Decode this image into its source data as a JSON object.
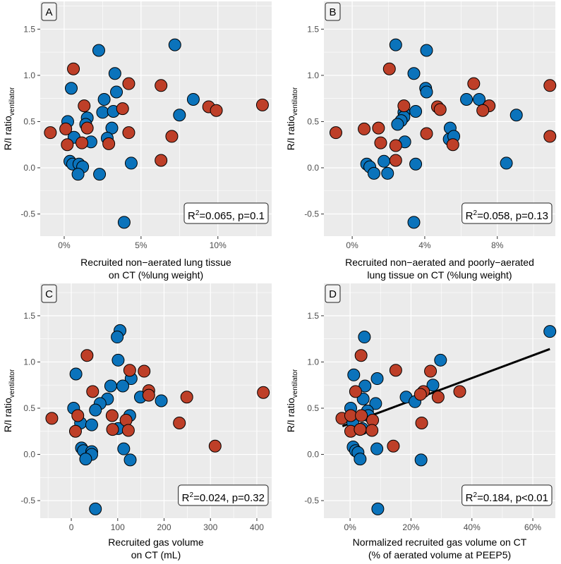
{
  "chart_data": [
    {
      "type": "scatter",
      "panel_label": "A",
      "ylabel": "R/I ratio",
      "ylabel_sub": "ventilator",
      "xlabel_lines": [
        "Recruited non−aerated lung tissue",
        "on CT (%lung weight)"
      ],
      "xlim": [
        -1.56,
        13.5
      ],
      "ylim": [
        -0.74,
        1.8
      ],
      "xticks": [
        {
          "v": 0,
          "label": "0%"
        },
        {
          "v": 5,
          "label": "5%"
        },
        {
          "v": 10,
          "label": "10%"
        }
      ],
      "yticks": [
        {
          "v": -0.5,
          "label": "-0.5"
        },
        {
          "v": 0,
          "label": "0.0"
        },
        {
          "v": 0.5,
          "label": "0.5"
        },
        {
          "v": 1,
          "label": "1.0"
        },
        {
          "v": 1.5,
          "label": "1.5"
        }
      ],
      "stat": {
        "r": "R",
        "sup": "2",
        "rest": "=0.065, p=0.1"
      },
      "series": [
        {
          "color": "#0b73bb",
          "points": [
            [
              7.2,
              1.33
            ],
            [
              2.25,
              1.27
            ],
            [
              3.3,
              1.02
            ],
            [
              0.46,
              0.86
            ],
            [
              3.4,
              0.82
            ],
            [
              2.6,
              0.74
            ],
            [
              8.4,
              0.74
            ],
            [
              7.5,
              0.57
            ],
            [
              2.5,
              0.6
            ],
            [
              3.2,
              0.61
            ],
            [
              1.5,
              0.54
            ],
            [
              0.23,
              0.5
            ],
            [
              1.4,
              0.47
            ],
            [
              3.1,
              0.43
            ],
            [
              0.64,
              0.33
            ],
            [
              1.74,
              0.28
            ],
            [
              2.8,
              0.32
            ],
            [
              0.37,
              0.07
            ],
            [
              0.55,
              0.04
            ],
            [
              0.96,
              0.04
            ],
            [
              1.2,
              0.01
            ],
            [
              0.9,
              -0.07
            ],
            [
              2.3,
              -0.07
            ],
            [
              4.36,
              0.05
            ],
            [
              3.9,
              -0.59
            ]
          ]
        },
        {
          "color": "#be3f28",
          "points": [
            [
              0.6,
              1.07
            ],
            [
              4.2,
              0.91
            ],
            [
              6.3,
              0.89
            ],
            [
              1.3,
              0.67
            ],
            [
              3.8,
              0.64
            ],
            [
              9.4,
              0.66
            ],
            [
              9.9,
              0.62
            ],
            [
              12.9,
              0.68
            ],
            [
              1.5,
              0.43
            ],
            [
              0.1,
              0.42
            ],
            [
              -0.9,
              0.38
            ],
            [
              4.2,
              0.38
            ],
            [
              7.0,
              0.34
            ],
            [
              1.15,
              0.27
            ],
            [
              0.2,
              0.25
            ],
            [
              2.9,
              0.26
            ],
            [
              6.3,
              0.08
            ]
          ]
        }
      ]
    },
    {
      "type": "scatter",
      "panel_label": "B",
      "ylabel": "R/I ratio",
      "ylabel_sub": "ventilator",
      "xlabel_lines": [
        "Recruited non−aerated and poorly−aerated",
        "lung tissue on CT (%lung weight)"
      ],
      "xlim": [
        -1.56,
        11.2
      ],
      "ylim": [
        -0.74,
        1.8
      ],
      "xticks": [
        {
          "v": 0,
          "label": "0%"
        },
        {
          "v": 4,
          "label": "4%"
        },
        {
          "v": 8,
          "label": "8%"
        }
      ],
      "yticks": [
        {
          "v": -0.5,
          "label": "-0.5"
        },
        {
          "v": 0,
          "label": "0.0"
        },
        {
          "v": 0.5,
          "label": "0.5"
        },
        {
          "v": 1,
          "label": "1.0"
        },
        {
          "v": 1.5,
          "label": "1.5"
        }
      ],
      "stat": {
        "r": "R",
        "sup": "2",
        "rest": "=0.058, p=0.13"
      },
      "series": [
        {
          "color": "#0b73bb",
          "points": [
            [
              2.4,
              1.33
            ],
            [
              4.1,
              1.27
            ],
            [
              3.4,
              1.02
            ],
            [
              4.05,
              0.86
            ],
            [
              4.1,
              0.82
            ],
            [
              6.3,
              0.74
            ],
            [
              7.0,
              0.74
            ],
            [
              9.05,
              0.57
            ],
            [
              3.5,
              0.61
            ],
            [
              2.85,
              0.6
            ],
            [
              2.85,
              0.55
            ],
            [
              2.7,
              0.51
            ],
            [
              2.5,
              0.47
            ],
            [
              5.4,
              0.43
            ],
            [
              5.35,
              0.31
            ],
            [
              5.6,
              0.34
            ],
            [
              2.9,
              0.28
            ],
            [
              0.8,
              0.04
            ],
            [
              0.97,
              0.01
            ],
            [
              1.75,
              0.07
            ],
            [
              1.2,
              -0.06
            ],
            [
              1.95,
              -0.06
            ],
            [
              3.5,
              0.04
            ],
            [
              8.5,
              0.05
            ],
            [
              3.4,
              -0.59
            ]
          ]
        },
        {
          "color": "#be3f28",
          "points": [
            [
              2.05,
              1.07
            ],
            [
              6.7,
              0.91
            ],
            [
              10.9,
              0.89
            ],
            [
              2.85,
              0.67
            ],
            [
              4.7,
              0.66
            ],
            [
              4.85,
              0.63
            ],
            [
              7.55,
              0.67
            ],
            [
              7.2,
              0.62
            ],
            [
              -0.9,
              0.38
            ],
            [
              0.66,
              0.42
            ],
            [
              1.45,
              0.43
            ],
            [
              4.1,
              0.37
            ],
            [
              1.57,
              0.27
            ],
            [
              2.4,
              0.24
            ],
            [
              5.55,
              0.25
            ],
            [
              2.4,
              0.08
            ],
            [
              10.9,
              0.34
            ]
          ]
        }
      ]
    },
    {
      "type": "scatter",
      "panel_label": "C",
      "ylabel": "R/I ratio",
      "ylabel_sub": "ventilator",
      "xlabel_lines": [
        "Recruited gas volume",
        "on CT (mL)"
      ],
      "xlim": [
        -67,
        432
      ],
      "ylim": [
        -0.69,
        1.85
      ],
      "xticks": [
        {
          "v": 0,
          "label": "0"
        },
        {
          "v": 100,
          "label": "100"
        },
        {
          "v": 200,
          "label": "200"
        },
        {
          "v": 300,
          "label": "300"
        },
        {
          "v": 400,
          "label": "400"
        }
      ],
      "yticks": [
        {
          "v": -0.5,
          "label": "-0.5"
        },
        {
          "v": 0,
          "label": "0.0"
        },
        {
          "v": 0.5,
          "label": "0.5"
        },
        {
          "v": 1,
          "label": "1.0"
        },
        {
          "v": 1.5,
          "label": "1.5"
        }
      ],
      "stat": {
        "r": "R",
        "sup": "2",
        "rest": "=0.024, p=0.32"
      },
      "series": [
        {
          "color": "#0b73bb",
          "points": [
            [
              105,
              1.34
            ],
            [
              99,
              1.27
            ],
            [
              101,
              1.02
            ],
            [
              10,
              0.87
            ],
            [
              129,
              0.82
            ],
            [
              85,
              0.74
            ],
            [
              111,
              0.74
            ],
            [
              78,
              0.6
            ],
            [
              149,
              0.62
            ],
            [
              194,
              0.58
            ],
            [
              62,
              0.55
            ],
            [
              52,
              0.48
            ],
            [
              5,
              0.5
            ],
            [
              126,
              0.42
            ],
            [
              20,
              0.34
            ],
            [
              44,
              0.32
            ],
            [
              101,
              0.28
            ],
            [
              22,
              0.07
            ],
            [
              26,
              0.04
            ],
            [
              44,
              0.03
            ],
            [
              44,
              0.0
            ],
            [
              31,
              -0.05
            ],
            [
              113,
              0.06
            ],
            [
              127,
              -0.06
            ],
            [
              52,
              -0.59
            ]
          ]
        },
        {
          "color": "#be3f28",
          "points": [
            [
              34,
              1.07
            ],
            [
              126,
              0.91
            ],
            [
              157,
              0.9
            ],
            [
              167,
              0.69
            ],
            [
              167,
              0.64
            ],
            [
              46,
              0.68
            ],
            [
              249,
              0.62
            ],
            [
              414,
              0.67
            ],
            [
              14,
              0.42
            ],
            [
              -42,
              0.39
            ],
            [
              88,
              0.42
            ],
            [
              118,
              0.37
            ],
            [
              233,
              0.34
            ],
            [
              9,
              0.25
            ],
            [
              89,
              0.27
            ],
            [
              123,
              0.26
            ],
            [
              310,
              0.09
            ]
          ]
        }
      ]
    },
    {
      "type": "scatter",
      "panel_label": "D",
      "ylabel": "R/I ratio",
      "ylabel_sub": "ventilator",
      "xlabel_lines": [
        "Normalized recruited gas volume on CT",
        "(% of aerated volume at PEEP5)"
      ],
      "xlim": [
        -8.6,
        67.4
      ],
      "ylim": [
        -0.69,
        1.85
      ],
      "xticks": [
        {
          "v": 0,
          "label": "0%"
        },
        {
          "v": 20,
          "label": "20%"
        },
        {
          "v": 40,
          "label": "40%"
        },
        {
          "v": 60,
          "label": "60%"
        }
      ],
      "yticks": [
        {
          "v": -0.5,
          "label": "-0.5"
        },
        {
          "v": 0,
          "label": "0.0"
        },
        {
          "v": 0.5,
          "label": "0.5"
        },
        {
          "v": 1,
          "label": "1.0"
        },
        {
          "v": 1.5,
          "label": "1.5"
        }
      ],
      "stat": {
        "r": "R",
        "sup": "2",
        "rest": "=0.184, p<0.01"
      },
      "regression_line": [
        [
          -2.5,
          0.305
        ],
        [
          65.6,
          1.14
        ]
      ],
      "series": [
        {
          "color": "#0b73bb",
          "points": [
            [
              65.6,
              1.33
            ],
            [
              4.7,
              1.27
            ],
            [
              29.7,
              1.02
            ],
            [
              1.2,
              0.86
            ],
            [
              8.9,
              0.82
            ],
            [
              4.9,
              0.74
            ],
            [
              27.2,
              0.75
            ],
            [
              4.3,
              0.6
            ],
            [
              18.4,
              0.62
            ],
            [
              21.3,
              0.57
            ],
            [
              8.4,
              0.55
            ],
            [
              0.2,
              0.5
            ],
            [
              5.7,
              0.47
            ],
            [
              6.0,
              0.42
            ],
            [
              0.9,
              0.34
            ],
            [
              4.0,
              0.28
            ],
            [
              1.0,
              0.08
            ],
            [
              1.8,
              0.04
            ],
            [
              2.6,
              0.02
            ],
            [
              3.3,
              -0.05
            ],
            [
              8.8,
              0.06
            ],
            [
              23.3,
              -0.06
            ],
            [
              9.1,
              -0.59
            ]
          ]
        },
        {
          "color": "#be3f28",
          "points": [
            [
              3.6,
              1.07
            ],
            [
              15.0,
              0.91
            ],
            [
              26.4,
              0.9
            ],
            [
              1.8,
              0.68
            ],
            [
              24.1,
              0.68
            ],
            [
              23.1,
              0.65
            ],
            [
              28.9,
              0.62
            ],
            [
              36.0,
              0.68
            ],
            [
              -2.7,
              0.39
            ],
            [
              0.2,
              0.42
            ],
            [
              3.7,
              0.42
            ],
            [
              7.4,
              0.37
            ],
            [
              23.5,
              0.34
            ],
            [
              0.2,
              0.25
            ],
            [
              7.2,
              0.26
            ],
            [
              3.3,
              0.27
            ],
            [
              14.2,
              0.09
            ]
          ]
        }
      ]
    }
  ]
}
